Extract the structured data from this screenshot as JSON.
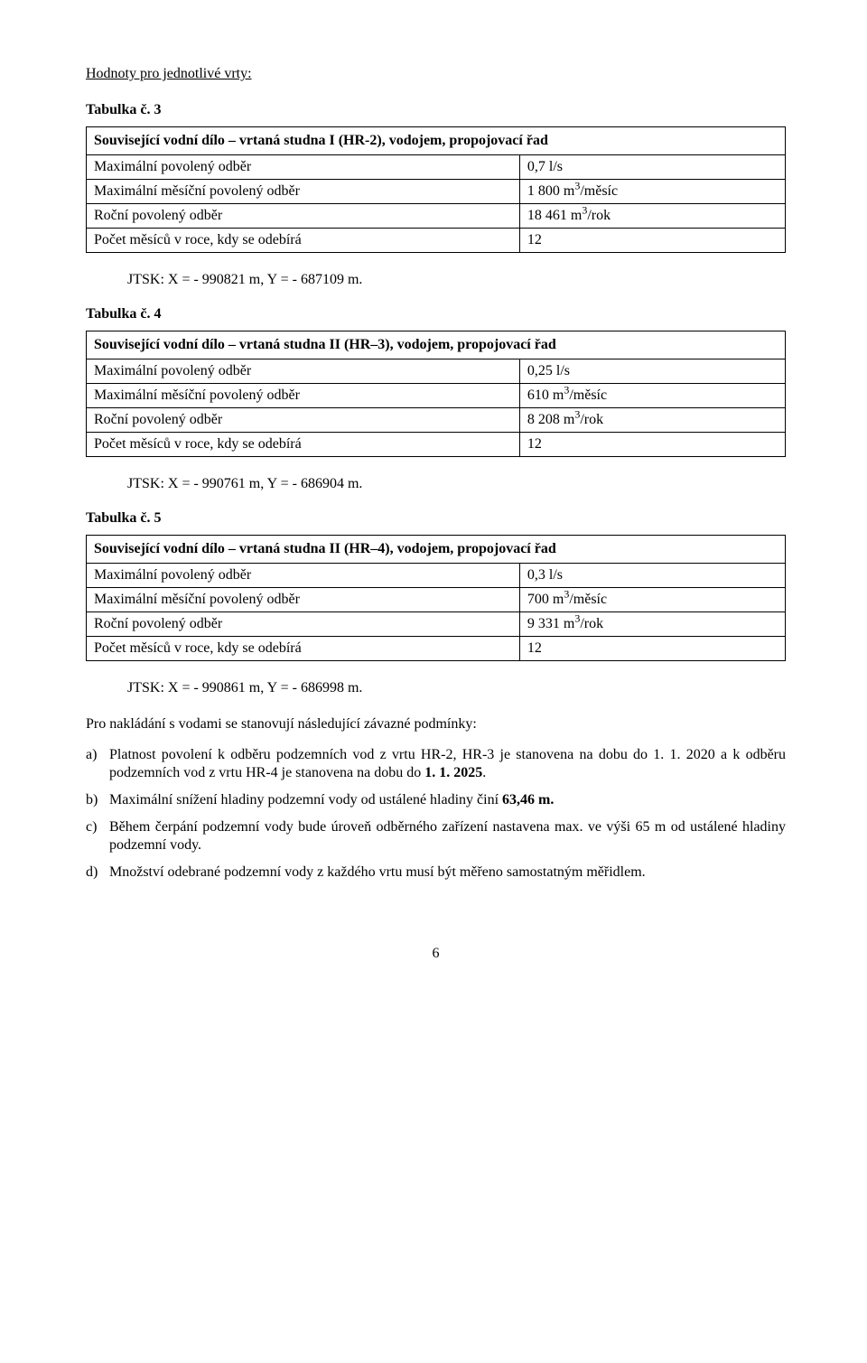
{
  "header": {
    "title": "Hodnoty pro jednotlivé vrty:"
  },
  "table3": {
    "caption": "Tabulka č. 3",
    "title": "Související vodní dílo – vrtaná studna I (HR-2), vodojem, propojovací řad",
    "rows": [
      {
        "label": "Maximální povolený odběr",
        "value": "0,7 l/s"
      },
      {
        "label": "Maximální měsíční povolený odběr",
        "value_html": "1 800 m<sup>3</sup>/měsíc"
      },
      {
        "label": "Roční povolený odběr",
        "value_html": "18 461 m<sup>3</sup>/rok"
      },
      {
        "label": "Počet měsíců v roce, kdy se odebírá",
        "value": "12"
      }
    ],
    "jtsk": "JTSK:  X = - 990821 m,  Y = - 687109 m."
  },
  "table4": {
    "caption": "Tabulka č. 4",
    "title": "Související vodní dílo – vrtaná studna II (HR–3), vodojem, propojovací řad",
    "rows": [
      {
        "label": "Maximální povolený odběr",
        "value": "0,25 l/s"
      },
      {
        "label": "Maximální měsíční povolený odběr",
        "value_html": "610 m<sup>3</sup>/měsíc"
      },
      {
        "label": "Roční povolený odběr",
        "value_html": "8 208 m<sup>3</sup>/rok"
      },
      {
        "label": "Počet měsíců v roce, kdy se odebírá",
        "value": "12"
      }
    ],
    "jtsk": "JTSK:  X = - 990761 m,  Y = - 686904 m."
  },
  "table5": {
    "caption": "Tabulka č. 5",
    "title": "Související vodní dílo – vrtaná studna II (HR–4), vodojem, propojovací řad",
    "rows": [
      {
        "label": "Maximální povolený odběr",
        "value": "0,3 l/s"
      },
      {
        "label": "Maximální měsíční povolený odběr",
        "value_html": "700 m<sup>3</sup>/měsíc"
      },
      {
        "label": "Roční povolený odběr",
        "value_html": "9 331 m<sup>3</sup>/rok"
      },
      {
        "label": "Počet měsíců v roce, kdy se odebírá",
        "value": "12"
      }
    ],
    "jtsk": "JTSK:  X = - 990861 m,  Y = - 686998 m."
  },
  "conditions": {
    "intro": "Pro nakládání s vodami se stanovují následující závazné podmínky:",
    "items": [
      {
        "marker": "a)",
        "html": "Platnost povolení k odběru podzemních vod z vrtu HR-2, HR-3 je stanovena na dobu do 1. 1. 2020 a k odběru podzemních vod z vrtu HR-4 je stanovena na dobu do <b>1. 1. 2025</b>."
      },
      {
        "marker": "b)",
        "html": "Maximální snížení hladiny podzemní vody od ustálené hladiny činí <b>63,46 m.</b>"
      },
      {
        "marker": "c)",
        "html": "Během čerpání podzemní vody bude úroveň odběrného zařízení nastavena max. ve výši 65 m od ustálené hladiny podzemní vody."
      },
      {
        "marker": "d)",
        "html": "Množství odebrané podzemní vody z každého vrtu musí být měřeno samostatným měřidlem."
      }
    ]
  },
  "page_number": "6"
}
